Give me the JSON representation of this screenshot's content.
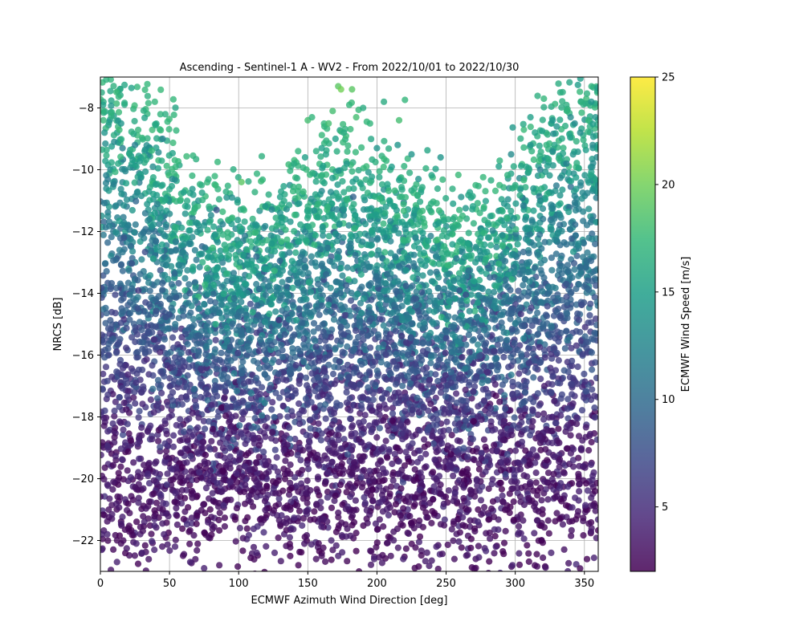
{
  "chart_data": {
    "type": "scatter",
    "title": "Ascending - Sentinel-1 A - WV2 - From 2022/10/01 to 2022/10/30",
    "xlabel": "ECMWF Azimuth Wind Direction [deg]",
    "ylabel": "NRCS [dB]",
    "xlim": [
      0,
      360
    ],
    "ylim": [
      -23,
      -7
    ],
    "x_ticks": [
      0,
      50,
      100,
      150,
      200,
      250,
      300,
      350
    ],
    "y_ticks": [
      -22,
      -20,
      -18,
      -16,
      -14,
      -12,
      -10,
      -8
    ],
    "grid": true,
    "colorbar": {
      "label": "ECMWF Wind Speed [m/s]",
      "range": [
        2,
        25
      ],
      "ticks": [
        5,
        10,
        15,
        20,
        25
      ],
      "colormap": "viridis"
    },
    "point_color_encodes": "wind speed [m/s]",
    "points": [
      {
        "x": 1,
        "y": -7.5,
        "c": 16
      },
      {
        "x": 2,
        "y": -7.9,
        "c": 15
      },
      {
        "x": 3,
        "y": -8.8,
        "c": 14
      },
      {
        "x": 10,
        "y": -9.1,
        "c": 13
      },
      {
        "x": 15,
        "y": -8.5,
        "c": 14
      },
      {
        "x": 16,
        "y": -9.3,
        "c": 12
      },
      {
        "x": 25,
        "y": -9.2,
        "c": 12
      },
      {
        "x": 45,
        "y": -9.0,
        "c": 12
      },
      {
        "x": 38,
        "y": -9.9,
        "c": 13
      },
      {
        "x": 52,
        "y": -10.3,
        "c": 13
      },
      {
        "x": 63,
        "y": -11.2,
        "c": 15
      },
      {
        "x": 84,
        "y": -11.3,
        "c": 8
      },
      {
        "x": 75,
        "y": -11.8,
        "c": 14
      },
      {
        "x": 83,
        "y": -12.1,
        "c": 14
      },
      {
        "x": 102,
        "y": -10.4,
        "c": 19
      },
      {
        "x": 102,
        "y": -12.0,
        "c": 14
      },
      {
        "x": 101,
        "y": -12.4,
        "c": 15
      },
      {
        "x": 101,
        "y": -13.0,
        "c": 14
      },
      {
        "x": 96,
        "y": -13.5,
        "c": 13
      },
      {
        "x": 113,
        "y": -11.8,
        "c": 14
      },
      {
        "x": 130,
        "y": -11.4,
        "c": 14
      },
      {
        "x": 150,
        "y": -8.4,
        "c": 18
      },
      {
        "x": 153,
        "y": -8.3,
        "c": 17
      },
      {
        "x": 162,
        "y": -8.6,
        "c": 17
      },
      {
        "x": 165,
        "y": -8.5,
        "c": 18
      },
      {
        "x": 172,
        "y": -7.3,
        "c": 19
      },
      {
        "x": 174,
        "y": -7.4,
        "c": 20
      },
      {
        "x": 182,
        "y": -7.4,
        "c": 19
      },
      {
        "x": 180,
        "y": -7.9,
        "c": 17
      },
      {
        "x": 168,
        "y": -8.1,
        "c": 18
      },
      {
        "x": 190,
        "y": -8.0,
        "c": 16
      },
      {
        "x": 205,
        "y": -7.8,
        "c": 16
      },
      {
        "x": 216,
        "y": -8.4,
        "c": 18
      },
      {
        "x": 195,
        "y": -8.5,
        "c": 17
      },
      {
        "x": 185,
        "y": -8.3,
        "c": 18
      },
      {
        "x": 176,
        "y": -8.8,
        "c": 16
      },
      {
        "x": 143,
        "y": -9.4,
        "c": 17
      },
      {
        "x": 140,
        "y": -9.8,
        "c": 16
      },
      {
        "x": 148,
        "y": -9.6,
        "c": 15
      },
      {
        "x": 160,
        "y": -9.3,
        "c": 15
      },
      {
        "x": 170,
        "y": -9.0,
        "c": 15
      },
      {
        "x": 200,
        "y": -9.3,
        "c": 14
      },
      {
        "x": 215,
        "y": -9.2,
        "c": 14
      },
      {
        "x": 225,
        "y": -9.5,
        "c": 14
      },
      {
        "x": 246,
        "y": -9.6,
        "c": 14
      },
      {
        "x": 230,
        "y": -10.3,
        "c": 14
      },
      {
        "x": 255,
        "y": -11.1,
        "c": 15
      },
      {
        "x": 255,
        "y": -11.6,
        "c": 16
      },
      {
        "x": 282,
        "y": -11.5,
        "c": 15
      },
      {
        "x": 292,
        "y": -11.1,
        "c": 14
      },
      {
        "x": 298,
        "y": -10.6,
        "c": 16
      },
      {
        "x": 300,
        "y": -10.5,
        "c": 16
      },
      {
        "x": 297,
        "y": -9.5,
        "c": 13
      },
      {
        "x": 311,
        "y": -8.3,
        "c": 15
      },
      {
        "x": 311,
        "y": -9.2,
        "c": 14
      },
      {
        "x": 327,
        "y": -8.4,
        "c": 14
      },
      {
        "x": 330,
        "y": -8.6,
        "c": 14
      },
      {
        "x": 327,
        "y": -9.4,
        "c": 13
      },
      {
        "x": 340,
        "y": -8.3,
        "c": 13
      },
      {
        "x": 343,
        "y": -8.5,
        "c": 13
      },
      {
        "x": 347,
        "y": -8.8,
        "c": 13
      },
      {
        "x": 355,
        "y": -7.8,
        "c": 14
      },
      {
        "x": 358,
        "y": -8.3,
        "c": 14
      },
      {
        "x": 356,
        "y": -9.2,
        "c": 13
      },
      {
        "x": 359,
        "y": -9.6,
        "c": 13
      },
      {
        "x": 337,
        "y": -9.8,
        "c": 12
      },
      {
        "x": 360,
        "y": -10.5,
        "c": 13
      },
      {
        "x": 318,
        "y": -10.0,
        "c": 12
      },
      {
        "x": 318,
        "y": -11.0,
        "c": 13
      },
      {
        "x": 275,
        "y": -12.4,
        "c": 16
      },
      {
        "x": 278,
        "y": -13.0,
        "c": 16
      },
      {
        "x": 270,
        "y": -13.6,
        "c": 15
      },
      {
        "x": 262,
        "y": -13.2,
        "c": 16
      },
      {
        "x": 247,
        "y": -12.7,
        "c": 16
      },
      {
        "x": 237,
        "y": -12.3,
        "c": 15
      },
      {
        "x": 302,
        "y": -21.8,
        "c": 4
      },
      {
        "x": 326,
        "y": -22.4,
        "c": 4
      },
      {
        "x": 338,
        "y": -23.0,
        "c": 4
      },
      {
        "x": 298,
        "y": -22.8,
        "c": 4
      },
      {
        "x": 286,
        "y": -22.2,
        "c": 4
      },
      {
        "x": 256,
        "y": -22.6,
        "c": 3
      },
      {
        "x": 243,
        "y": -22.2,
        "c": 4
      },
      {
        "x": 219,
        "y": -22.6,
        "c": 4
      },
      {
        "x": 210,
        "y": -22.5,
        "c": 3
      },
      {
        "x": 198,
        "y": -22.6,
        "c": 4
      },
      {
        "x": 172,
        "y": -22.5,
        "c": 4
      },
      {
        "x": 167,
        "y": -22.0,
        "c": 4
      },
      {
        "x": 160,
        "y": -22.5,
        "c": 3
      },
      {
        "x": 156,
        "y": -22.6,
        "c": 3
      },
      {
        "x": 126,
        "y": -22.4,
        "c": 4
      },
      {
        "x": 137,
        "y": -21.9,
        "c": 4
      },
      {
        "x": 113,
        "y": -22.4,
        "c": 4
      },
      {
        "x": 101,
        "y": -21.6,
        "c": 4
      },
      {
        "x": 86,
        "y": -22.8,
        "c": 3
      },
      {
        "x": 75,
        "y": -22.9,
        "c": 4
      },
      {
        "x": 65,
        "y": -22.7,
        "c": 4
      },
      {
        "x": 54,
        "y": -22.2,
        "c": 4
      },
      {
        "x": 46,
        "y": -21.8,
        "c": 4
      },
      {
        "x": 39,
        "y": -22.3,
        "c": 4
      },
      {
        "x": 30,
        "y": -22.4,
        "c": 4
      },
      {
        "x": 26,
        "y": -22.1,
        "c": 4
      },
      {
        "x": 12,
        "y": -22.7,
        "c": 4
      },
      {
        "x": 5,
        "y": -21.8,
        "c": 4
      },
      {
        "x": 1,
        "y": -22.3,
        "c": 4
      },
      {
        "x": 1,
        "y": -21.8,
        "c": 4
      }
    ],
    "n_generated_points": 7000
  }
}
